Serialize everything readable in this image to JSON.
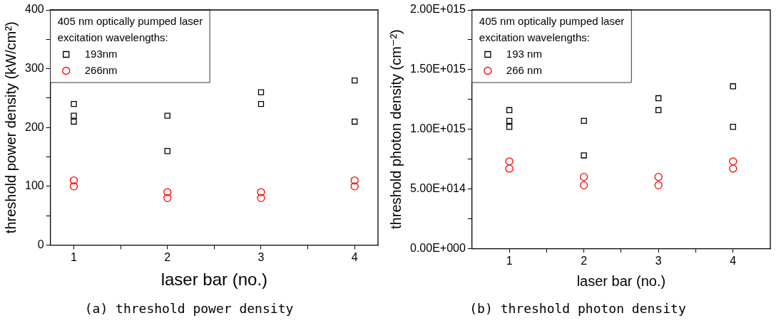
{
  "chart_data": [
    {
      "type": "scatter",
      "title": "(a) threshold power density",
      "xlabel": "laser bar (no.)",
      "ylabel": "threshold power density (kW/cm²)",
      "legend_title": "405 nm optically pumped laser\nexcitation wavelengths:",
      "legend": "top left",
      "grid": false,
      "xlim": [
        0.75,
        4.25
      ],
      "xticks": [
        1,
        {
          "value": 1.5,
          "label": null
        },
        2,
        {
          "value": 2.5,
          "label": null
        },
        3,
        {
          "value": 3.5,
          "label": null
        },
        4
      ],
      "ylim": [
        0,
        400
      ],
      "yticks": [
        0,
        {
          "value": 50,
          "label": null
        },
        100,
        {
          "value": 150,
          "label": null
        },
        200,
        {
          "value": 250,
          "label": null
        },
        300,
        {
          "value": 350,
          "label": null
        },
        400
      ],
      "series": [
        {
          "name": "193nm",
          "color": "#000000",
          "marker": "square",
          "x": [
            1,
            1,
            1,
            2,
            2,
            3,
            3,
            4,
            4
          ],
          "values": [
            240,
            220,
            210,
            220,
            160,
            260,
            240,
            280,
            210
          ]
        },
        {
          "name": "266nm",
          "color": "#ff0000",
          "marker": "circle",
          "x": [
            1,
            1,
            2,
            2,
            3,
            3,
            4,
            4
          ],
          "values": [
            110,
            100,
            90,
            80,
            90,
            80,
            110,
            100
          ]
        }
      ]
    },
    {
      "type": "scatter",
      "title": "(b) threshold photon density",
      "xlabel": "laser bar (no.)",
      "ylabel": "threshold photon density (cm⁻²)",
      "legend_title": "405 nm optically pumped laser\nexcitation wavelengths:",
      "legend": "top left",
      "grid": false,
      "xlim": [
        0.5,
        4.5
      ],
      "xticks": [
        1,
        {
          "value": 1.5,
          "label": null
        },
        2,
        {
          "value": 2.5,
          "label": null
        },
        3,
        {
          "value": 3.5,
          "label": null
        },
        4
      ],
      "ylim": [
        0,
        2000000000000000.0
      ],
      "yticks": [
        {
          "value": 0,
          "label": "0.00E+000"
        },
        {
          "value": 250000000000000.0,
          "label": null
        },
        {
          "value": 500000000000000.0,
          "label": "5.00E+014"
        },
        {
          "value": 750000000000000.0,
          "label": null
        },
        {
          "value": 1000000000000000.0,
          "label": "1.00E+015"
        },
        {
          "value": 1250000000000000.0,
          "label": null
        },
        {
          "value": 1500000000000000.0,
          "label": "1.50E+015"
        },
        {
          "value": 1750000000000000.0,
          "label": null
        },
        {
          "value": 2000000000000000.0,
          "label": "2.00E+015"
        }
      ],
      "series": [
        {
          "name": "193 nm",
          "color": "#000000",
          "marker": "square",
          "x": [
            1,
            1,
            1,
            2,
            2,
            3,
            3,
            4,
            4
          ],
          "values": [
            1160000000000000.0,
            1070000000000000.0,
            1020000000000000.0,
            1070000000000000.0,
            780000000000000.0,
            1260000000000000.0,
            1160000000000000.0,
            1360000000000000.0,
            1020000000000000.0
          ]
        },
        {
          "name": "266 nm",
          "color": "#ff0000",
          "marker": "circle",
          "x": [
            1,
            1,
            2,
            2,
            3,
            3,
            4,
            4
          ],
          "values": [
            730000000000000.0,
            670000000000000.0,
            600000000000000.0,
            530000000000000.0,
            600000000000000.0,
            530000000000000.0,
            730000000000000.0,
            670000000000000.0
          ]
        }
      ]
    }
  ]
}
